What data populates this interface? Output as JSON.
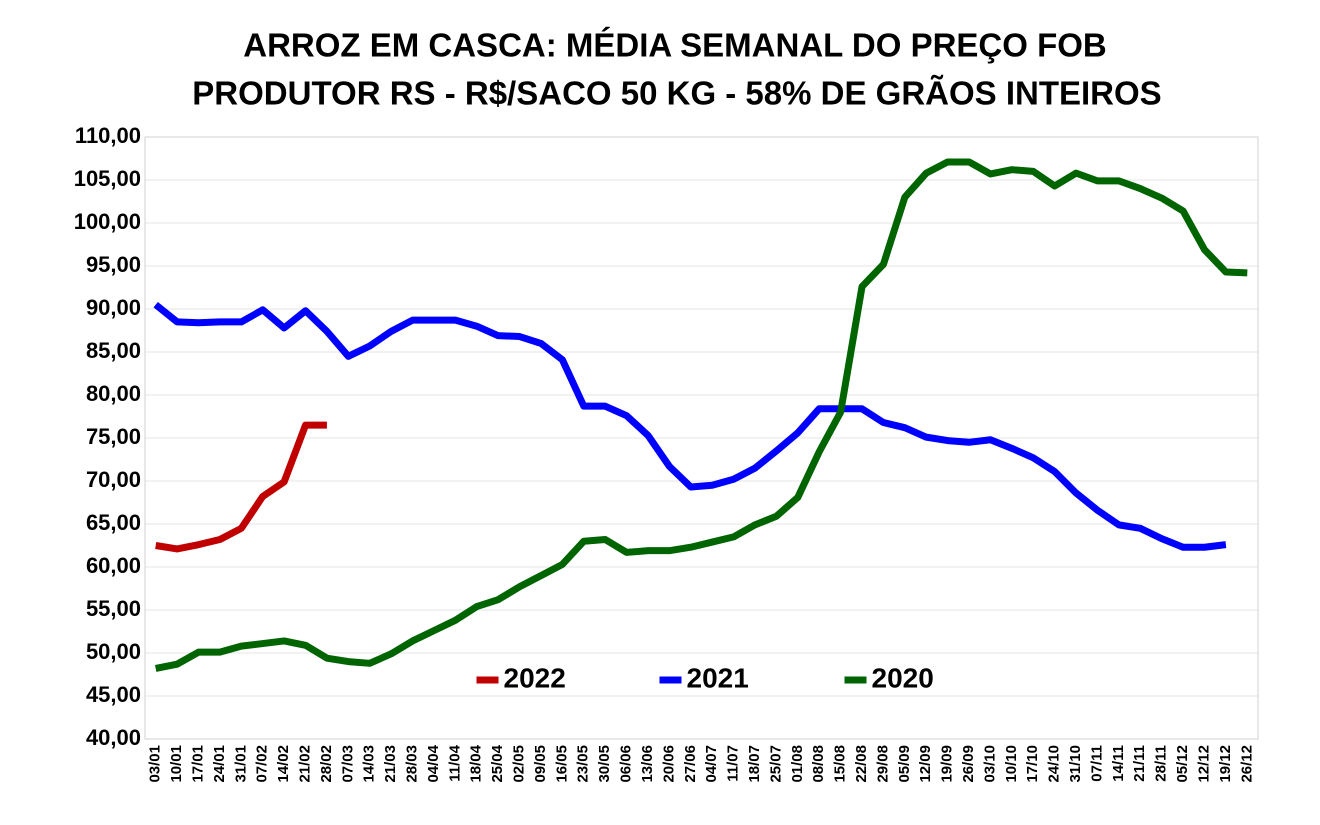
{
  "chart_data": {
    "type": "line",
    "title": [
      "ARROZ EM CASCA: MÉDIA SEMANAL DO PREÇO FOB",
      "PRODUTOR RS - R$/SACO 50 KG - 58% DE GRÃOS INTEIROS"
    ],
    "categories": [
      "03/01",
      "10/01",
      "17/01",
      "24/01",
      "31/01",
      "07/02",
      "14/02",
      "21/02",
      "28/02",
      "07/03",
      "14/03",
      "21/03",
      "28/03",
      "04/04",
      "11/04",
      "18/04",
      "25/04",
      "02/05",
      "09/05",
      "16/05",
      "23/05",
      "30/05",
      "06/06",
      "13/06",
      "20/06",
      "27/06",
      "04/07",
      "11/07",
      "18/07",
      "25/07",
      "01/08",
      "08/08",
      "15/08",
      "22/08",
      "29/08",
      "05/09",
      "12/09",
      "19/09",
      "26/09",
      "03/10",
      "10/10",
      "17/10",
      "24/10",
      "31/10",
      "07/11",
      "14/11",
      "21/11",
      "28/11",
      "05/12",
      "12/12",
      "19/12",
      "26/12"
    ],
    "series": [
      {
        "name": "2022",
        "color": "#c00000",
        "values": [
          62.5,
          62.1,
          62.6,
          63.2,
          64.5,
          68.2,
          69.9,
          76.5,
          76.5,
          null,
          null,
          null,
          null,
          null,
          null,
          null,
          null,
          null,
          null,
          null,
          null,
          null,
          null,
          null,
          null,
          null,
          null,
          null,
          null,
          null,
          null,
          null,
          null,
          null,
          null,
          null,
          null,
          null,
          null,
          null,
          null,
          null,
          null,
          null,
          null,
          null,
          null,
          null,
          null,
          null,
          null,
          null
        ]
      },
      {
        "name": "2021",
        "color": "#0000ff",
        "values": [
          90.5,
          88.5,
          88.4,
          88.5,
          88.5,
          89.9,
          87.8,
          89.8,
          87.4,
          84.5,
          85.7,
          87.4,
          88.7,
          88.7,
          88.7,
          88.0,
          86.9,
          86.8,
          86.0,
          84.1,
          78.7,
          78.7,
          77.6,
          75.3,
          71.7,
          69.3,
          69.5,
          70.2,
          71.5,
          73.5,
          75.6,
          78.4,
          78.4,
          78.4,
          76.8,
          76.2,
          75.1,
          74.7,
          74.5,
          74.8,
          73.8,
          72.7,
          71.1,
          68.6,
          66.6,
          64.9,
          64.5,
          63.3,
          62.3,
          62.3,
          62.6,
          null
        ]
      },
      {
        "name": "2020",
        "color": "#006400",
        "values": [
          48.2,
          48.7,
          50.1,
          50.1,
          50.8,
          51.1,
          51.4,
          50.9,
          49.4,
          49.0,
          48.8,
          49.9,
          51.4,
          52.6,
          53.8,
          55.4,
          56.2,
          57.7,
          59.0,
          60.3,
          63.0,
          63.2,
          61.7,
          61.9,
          61.9,
          62.3,
          62.9,
          63.5,
          64.9,
          65.9,
          68.1,
          73.4,
          78.0,
          92.6,
          95.2,
          103.0,
          105.8,
          107.1,
          107.1,
          105.7,
          106.2,
          106.0,
          104.3,
          105.8,
          104.9,
          104.9,
          104.0,
          102.9,
          101.4,
          96.9,
          94.3,
          94.2
        ]
      }
    ],
    "ylim": [
      40,
      110
    ],
    "yticks": [
      {
        "value": 40,
        "label": "40,00"
      },
      {
        "value": 45,
        "label": "45,00"
      },
      {
        "value": 50,
        "label": "50,00"
      },
      {
        "value": 55,
        "label": "55,00"
      },
      {
        "value": 60,
        "label": "60,00"
      },
      {
        "value": 65,
        "label": "65,00"
      },
      {
        "value": 70,
        "label": "70,00"
      },
      {
        "value": 75,
        "label": "75,00"
      },
      {
        "value": 80,
        "label": "80,00"
      },
      {
        "value": 85,
        "label": "85,00"
      },
      {
        "value": 90,
        "label": "90,00"
      },
      {
        "value": 95,
        "label": "95,00"
      },
      {
        "value": 100,
        "label": "100,00"
      },
      {
        "value": 105,
        "label": "105,00"
      },
      {
        "value": 110,
        "label": "110,00"
      }
    ],
    "grid": true,
    "legend": "lower center"
  }
}
